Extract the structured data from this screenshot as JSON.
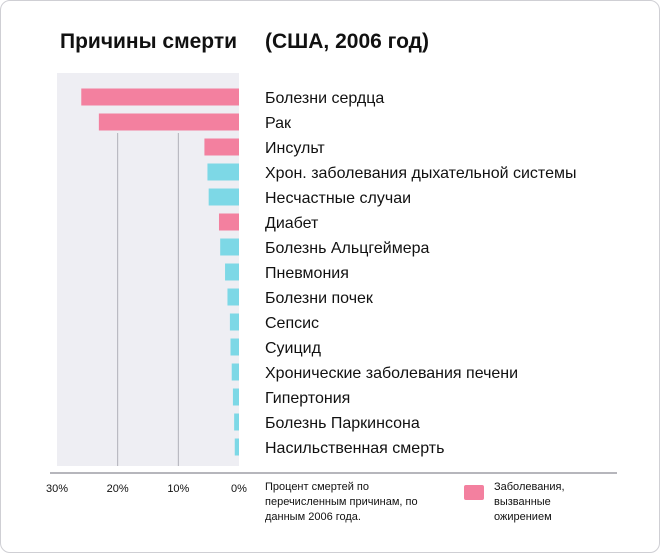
{
  "title": "Причины смерти",
  "subtitle": "(США, 2006 год)",
  "note": "Процент смертей по перечисленным причинам, по данным 2006 года.",
  "legend": {
    "label": "Заболевания, вызванные ожирением",
    "color": "#f3809f"
  },
  "colors": {
    "obesity": "#f3809f",
    "other": "#7dd8e6",
    "plot_bg": "#eeeef3",
    "grid": "#b0b0b8"
  },
  "chart_data": {
    "type": "bar",
    "orientation": "horizontal",
    "xlim": [
      0,
      30
    ],
    "xticks": [
      "30%",
      "20%",
      "10%",
      "0%"
    ],
    "xtick_values": [
      30,
      20,
      10,
      0
    ],
    "grid": true,
    "legend_position": "bottom-right",
    "categories": [
      "Болезни сердца",
      "Рак",
      "Инсульт",
      "Хрон. заболевания дыхательной системы",
      "Несчастные случаи",
      "Диабет",
      "Болезнь Альцгеймера",
      "Пневмония",
      "Болезни почек",
      "Сепсис",
      "Суицид",
      "Хронические заболевания печени",
      "Гипертония",
      "Болезнь Паркинсона",
      "Насильственная смерть"
    ],
    "values": [
      26.0,
      23.1,
      5.7,
      5.2,
      5.0,
      3.3,
      3.1,
      2.3,
      1.9,
      1.5,
      1.4,
      1.2,
      1.0,
      0.8,
      0.7
    ],
    "obesity_related": [
      true,
      true,
      true,
      false,
      false,
      true,
      false,
      false,
      false,
      false,
      false,
      false,
      false,
      false,
      false
    ]
  }
}
